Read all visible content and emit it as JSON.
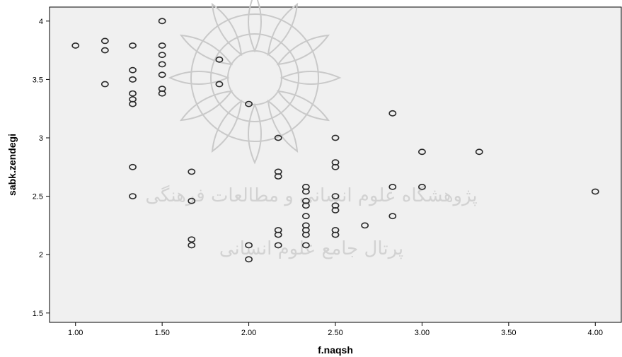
{
  "chart_data": {
    "type": "scatter",
    "title": "",
    "xlabel": "f.naqsh",
    "ylabel": "sabk.zendegi",
    "xlim": [
      0.85,
      4.15
    ],
    "ylim": [
      1.42,
      4.12
    ],
    "xticks": [
      1.0,
      1.5,
      2.0,
      2.5,
      3.0,
      3.5,
      4.0
    ],
    "xtick_labels": [
      "1.00",
      "1.50",
      "2.00",
      "2.50",
      "3.00",
      "3.50",
      "4.00"
    ],
    "yticks": [
      1.5,
      2.0,
      2.5,
      3.0,
      3.5,
      4.0
    ],
    "ytick_labels": [
      "1.5",
      "2",
      "2.5",
      "3",
      "3.5",
      "4"
    ],
    "grid": false,
    "background_color": "#f0f0f0",
    "marker_color": "#2b2b2b",
    "points": [
      {
        "x": 1.0,
        "y": 3.79
      },
      {
        "x": 1.17,
        "y": 3.83
      },
      {
        "x": 1.17,
        "y": 3.75
      },
      {
        "x": 1.17,
        "y": 3.46
      },
      {
        "x": 1.33,
        "y": 3.79
      },
      {
        "x": 1.33,
        "y": 3.58
      },
      {
        "x": 1.33,
        "y": 3.5
      },
      {
        "x": 1.33,
        "y": 3.38
      },
      {
        "x": 1.33,
        "y": 3.33
      },
      {
        "x": 1.33,
        "y": 3.29
      },
      {
        "x": 1.33,
        "y": 2.75
      },
      {
        "x": 1.33,
        "y": 2.5
      },
      {
        "x": 1.5,
        "y": 4.0
      },
      {
        "x": 1.5,
        "y": 3.79
      },
      {
        "x": 1.5,
        "y": 3.71
      },
      {
        "x": 1.5,
        "y": 3.63
      },
      {
        "x": 1.5,
        "y": 3.54
      },
      {
        "x": 1.5,
        "y": 3.42
      },
      {
        "x": 1.5,
        "y": 3.38
      },
      {
        "x": 1.67,
        "y": 2.71
      },
      {
        "x": 1.67,
        "y": 2.46
      },
      {
        "x": 1.67,
        "y": 2.13
      },
      {
        "x": 1.67,
        "y": 2.08
      },
      {
        "x": 1.83,
        "y": 3.67
      },
      {
        "x": 1.83,
        "y": 3.46
      },
      {
        "x": 2.0,
        "y": 3.29
      },
      {
        "x": 2.0,
        "y": 2.08
      },
      {
        "x": 2.0,
        "y": 1.96
      },
      {
        "x": 2.17,
        "y": 3.0
      },
      {
        "x": 2.17,
        "y": 2.71
      },
      {
        "x": 2.17,
        "y": 2.67
      },
      {
        "x": 2.17,
        "y": 2.21
      },
      {
        "x": 2.17,
        "y": 2.17
      },
      {
        "x": 2.17,
        "y": 2.08
      },
      {
        "x": 2.33,
        "y": 2.58
      },
      {
        "x": 2.33,
        "y": 2.54
      },
      {
        "x": 2.33,
        "y": 2.46
      },
      {
        "x": 2.33,
        "y": 2.42
      },
      {
        "x": 2.33,
        "y": 2.33
      },
      {
        "x": 2.33,
        "y": 2.25
      },
      {
        "x": 2.33,
        "y": 2.21
      },
      {
        "x": 2.33,
        "y": 2.17
      },
      {
        "x": 2.33,
        "y": 2.08
      },
      {
        "x": 2.5,
        "y": 3.0
      },
      {
        "x": 2.5,
        "y": 2.79
      },
      {
        "x": 2.5,
        "y": 2.75
      },
      {
        "x": 2.5,
        "y": 2.5
      },
      {
        "x": 2.5,
        "y": 2.42
      },
      {
        "x": 2.5,
        "y": 2.38
      },
      {
        "x": 2.5,
        "y": 2.21
      },
      {
        "x": 2.5,
        "y": 2.17
      },
      {
        "x": 2.67,
        "y": 2.25
      },
      {
        "x": 2.83,
        "y": 3.21
      },
      {
        "x": 2.83,
        "y": 2.58
      },
      {
        "x": 2.83,
        "y": 2.33
      },
      {
        "x": 3.0,
        "y": 2.88
      },
      {
        "x": 3.0,
        "y": 2.58
      },
      {
        "x": 3.33,
        "y": 2.88
      },
      {
        "x": 4.0,
        "y": 2.54
      }
    ]
  },
  "watermark": {
    "line1": "پژوهشگاه علوم انسانی و مطالعات فرهنگی",
    "line2": "پرتال جامع علوم انسانی"
  }
}
